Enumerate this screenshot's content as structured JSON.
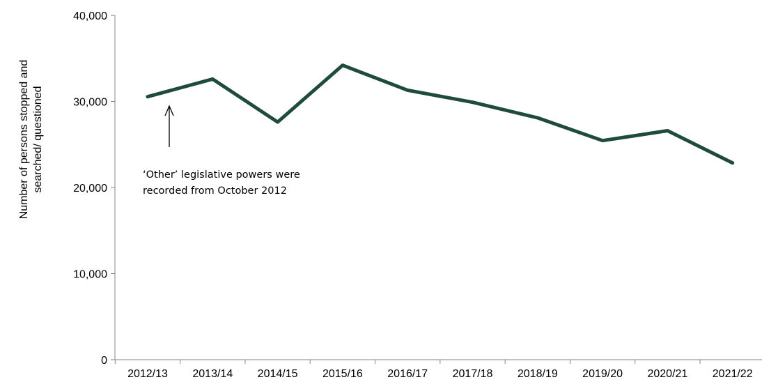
{
  "chart_data": {
    "type": "line",
    "categories": [
      "2012/13",
      "2013/14",
      "2014/15",
      "2015/16",
      "2016/17",
      "2017/18",
      "2018/19",
      "2019/20",
      "2020/21",
      "2021/22"
    ],
    "series": [
      {
        "values": [
          30550,
          32600,
          27600,
          34200,
          31300,
          29900,
          28100,
          25450,
          26600,
          22850
        ]
      }
    ],
    "ylabel_lines": [
      "Number of persons stopped and",
      "searched/ questioned"
    ],
    "ylim": [
      0,
      40000
    ],
    "yticks": [
      0,
      10000,
      20000,
      30000,
      40000
    ],
    "ytick_labels": [
      "0",
      "10,000",
      "20,000",
      "30,000",
      "40,000"
    ],
    "grid": false,
    "line_color": "#1f4a3e",
    "annotation": {
      "lines": [
        "‘Other’ legislative powers were",
        "recorded from October 2012"
      ]
    }
  }
}
